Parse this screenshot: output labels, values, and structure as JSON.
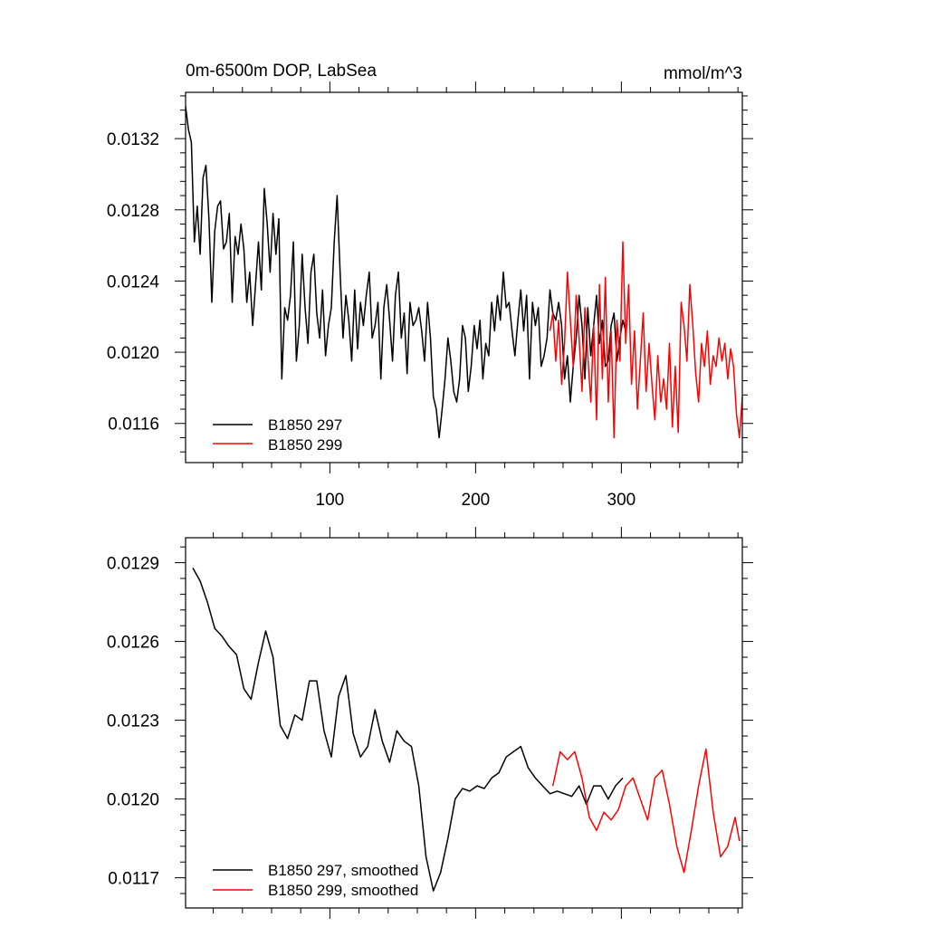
{
  "chart_data": [
    {
      "type": "line",
      "title": "0m-6500m DOP, LabSea",
      "units": "mmol/m^3",
      "xlim": [
        1,
        383
      ],
      "ylim": [
        0.01138,
        0.01346
      ],
      "xticks": [
        100,
        200,
        300
      ],
      "xticklabels": [
        "100",
        "200",
        "300"
      ],
      "yticks": [
        0.0116,
        0.012,
        0.0124,
        0.0128,
        0.0132
      ],
      "yticklabels": [
        "0.0116",
        "0.0120",
        "0.0124",
        "0.0128",
        "0.0132"
      ],
      "legend_position": "bottom-left",
      "series": [
        {
          "name": "B1850 297",
          "color": "#000000",
          "x": [
            1,
            3,
            5,
            7,
            9,
            11,
            13,
            15,
            17,
            19,
            21,
            23,
            25,
            27,
            29,
            31,
            33,
            35,
            37,
            39,
            41,
            43,
            45,
            47,
            49,
            51,
            53,
            55,
            57,
            59,
            61,
            63,
            65,
            67,
            69,
            71,
            73,
            75,
            77,
            79,
            81,
            83,
            85,
            87,
            89,
            91,
            93,
            95,
            97,
            99,
            101,
            103,
            105,
            107,
            109,
            111,
            113,
            115,
            117,
            119,
            121,
            123,
            125,
            127,
            129,
            131,
            133,
            135,
            137,
            139,
            141,
            143,
            145,
            147,
            149,
            151,
            153,
            155,
            157,
            159,
            161,
            163,
            165,
            167,
            169,
            171,
            173,
            175,
            177,
            179,
            181,
            183,
            185,
            187,
            189,
            191,
            193,
            195,
            197,
            199,
            201,
            203,
            205,
            207,
            209,
            211,
            213,
            215,
            217,
            219,
            221,
            223,
            225,
            227,
            229,
            231,
            233,
            235,
            237,
            239,
            241,
            243,
            245,
            247,
            249,
            251,
            253,
            255,
            257,
            259,
            261,
            263,
            265,
            267,
            269,
            271,
            273,
            275,
            277,
            279,
            281,
            283,
            285,
            287,
            289,
            291,
            293,
            295,
            297,
            299,
            301,
            303
          ],
          "values": [
            0.01338,
            0.01325,
            0.01318,
            0.01262,
            0.01282,
            0.01255,
            0.01298,
            0.01305,
            0.01275,
            0.01228,
            0.01268,
            0.01282,
            0.01285,
            0.01258,
            0.01262,
            0.01278,
            0.01228,
            0.01265,
            0.01255,
            0.01272,
            0.01258,
            0.01228,
            0.01245,
            0.01215,
            0.01238,
            0.01262,
            0.01235,
            0.01292,
            0.01272,
            0.01245,
            0.01278,
            0.01255,
            0.01275,
            0.01185,
            0.01225,
            0.01218,
            0.01232,
            0.01262,
            0.01195,
            0.01215,
            0.01255,
            0.01225,
            0.01205,
            0.01245,
            0.01255,
            0.01222,
            0.01208,
            0.01235,
            0.01198,
            0.01215,
            0.01225,
            0.01262,
            0.01288,
            0.01245,
            0.01208,
            0.01232,
            0.01218,
            0.01195,
            0.01235,
            0.01202,
            0.01228,
            0.01215,
            0.01232,
            0.01245,
            0.01208,
            0.01215,
            0.01228,
            0.01185,
            0.01225,
            0.01238,
            0.01218,
            0.01195,
            0.01232,
            0.01245,
            0.01208,
            0.01222,
            0.01188,
            0.01228,
            0.01215,
            0.01218,
            0.01225,
            0.01212,
            0.01195,
            0.01228,
            0.01208,
            0.01175,
            0.01168,
            0.01152,
            0.01168,
            0.01185,
            0.01208,
            0.01195,
            0.01178,
            0.01172,
            0.01185,
            0.01215,
            0.01208,
            0.01178,
            0.01192,
            0.01215,
            0.01202,
            0.01218,
            0.01185,
            0.01205,
            0.01198,
            0.01228,
            0.01212,
            0.01232,
            0.01218,
            0.01245,
            0.01225,
            0.01228,
            0.01212,
            0.01198,
            0.01218,
            0.01235,
            0.01212,
            0.01232,
            0.01185,
            0.01228,
            0.01215,
            0.01225,
            0.01192,
            0.01198,
            0.01208,
            0.01235,
            0.01222,
            0.01218,
            0.01228,
            0.01215,
            0.01185,
            0.01198,
            0.01172,
            0.01192,
            0.01208,
            0.01232,
            0.01215,
            0.01185,
            0.01225,
            0.01198,
            0.01215,
            0.01232,
            0.01205,
            0.01218,
            0.01192,
            0.01195,
            0.01215,
            0.01222,
            0.01195,
            0.01208,
            0.01218,
            0.01212
          ]
        },
        {
          "name": "B1850 299",
          "color": "#ff0000",
          "x": [
            251,
            253,
            255,
            257,
            259,
            261,
            263,
            265,
            267,
            269,
            271,
            273,
            275,
            277,
            279,
            281,
            283,
            285,
            287,
            289,
            291,
            293,
            295,
            297,
            299,
            301,
            303,
            305,
            307,
            309,
            311,
            313,
            315,
            317,
            319,
            321,
            323,
            325,
            327,
            329,
            331,
            333,
            335,
            337,
            339,
            341,
            343,
            345,
            347,
            349,
            351,
            353,
            355,
            357,
            359,
            361,
            363,
            365,
            367,
            369,
            371,
            373,
            375,
            377,
            379,
            381,
            383
          ],
          "values": [
            0.01212,
            0.01222,
            0.01195,
            0.01218,
            0.01182,
            0.01205,
            0.01245,
            0.01218,
            0.01192,
            0.01232,
            0.01208,
            0.01178,
            0.01225,
            0.01198,
            0.01172,
            0.01215,
            0.01162,
            0.01238,
            0.01185,
            0.01242,
            0.01172,
            0.01212,
            0.01152,
            0.01218,
            0.01195,
            0.01262,
            0.01205,
            0.01238,
            0.01182,
            0.01212,
            0.01168,
            0.01195,
            0.01222,
            0.01178,
            0.01205,
            0.01182,
            0.01162,
            0.01198,
            0.01172,
            0.01185,
            0.01168,
            0.01205,
            0.01158,
            0.01192,
            0.01155,
            0.01228,
            0.01215,
            0.01195,
            0.01238,
            0.01215,
            0.01188,
            0.01172,
            0.01205,
            0.01192,
            0.01212,
            0.01182,
            0.01198,
            0.01192,
            0.01208,
            0.01195,
            0.01205,
            0.01185,
            0.01202,
            0.01192,
            0.01165,
            0.01152,
            0.01175
          ]
        }
      ]
    },
    {
      "type": "line",
      "xlim": [
        1,
        383
      ],
      "ylim": [
        0.011585,
        0.012995
      ],
      "xticks": [
        100,
        200,
        300
      ],
      "xticklabels": [],
      "yticks": [
        0.0117,
        0.012,
        0.0123,
        0.0126,
        0.0129
      ],
      "yticklabels": [
        "0.0117",
        "0.0120",
        "0.0123",
        "0.0126",
        "0.0129"
      ],
      "legend_position": "bottom-left",
      "series": [
        {
          "name": "B1850 297, smoothed",
          "color": "#000000",
          "x": [
            6,
            11,
            16,
            21,
            26,
            31,
            36,
            41,
            46,
            51,
            56,
            61,
            66,
            71,
            76,
            81,
            86,
            91,
            96,
            101,
            106,
            111,
            116,
            121,
            126,
            131,
            136,
            141,
            146,
            151,
            156,
            161,
            166,
            171,
            176,
            181,
            186,
            191,
            196,
            201,
            206,
            211,
            216,
            221,
            226,
            231,
            236,
            241,
            246,
            251,
            256,
            261,
            266,
            271,
            276,
            281,
            286,
            291,
            296,
            301
          ],
          "values": [
            0.01288,
            0.01283,
            0.01275,
            0.01265,
            0.01262,
            0.01258,
            0.01255,
            0.01242,
            0.01238,
            0.01252,
            0.01264,
            0.01254,
            0.01228,
            0.01223,
            0.01232,
            0.0123,
            0.01245,
            0.01245,
            0.01226,
            0.01216,
            0.01239,
            0.01247,
            0.01225,
            0.01216,
            0.0122,
            0.01234,
            0.01222,
            0.01214,
            0.01226,
            0.01222,
            0.0122,
            0.01205,
            0.01178,
            0.01165,
            0.01172,
            0.01185,
            0.012,
            0.01204,
            0.01203,
            0.01205,
            0.01204,
            0.01208,
            0.0121,
            0.01216,
            0.01218,
            0.0122,
            0.01212,
            0.01208,
            0.01205,
            0.01202,
            0.01203,
            0.01202,
            0.01201,
            0.01205,
            0.01198,
            0.01205,
            0.01205,
            0.012,
            0.01205,
            0.01208
          ]
        },
        {
          "name": "B1850 299, smoothed",
          "color": "#ff0000",
          "x": [
            253,
            258,
            263,
            268,
            273,
            278,
            283,
            288,
            293,
            298,
            303,
            308,
            313,
            318,
            323,
            328,
            333,
            338,
            343,
            348,
            353,
            358,
            363,
            368,
            373,
            378,
            381
          ],
          "values": [
            0.01205,
            0.01218,
            0.01215,
            0.01218,
            0.01208,
            0.01193,
            0.01188,
            0.01195,
            0.01192,
            0.01196,
            0.01205,
            0.01208,
            0.012,
            0.01192,
            0.01208,
            0.01211,
            0.01198,
            0.01182,
            0.01172,
            0.01188,
            0.01205,
            0.01219,
            0.01195,
            0.01178,
            0.01182,
            0.01193,
            0.01184
          ]
        }
      ]
    }
  ]
}
